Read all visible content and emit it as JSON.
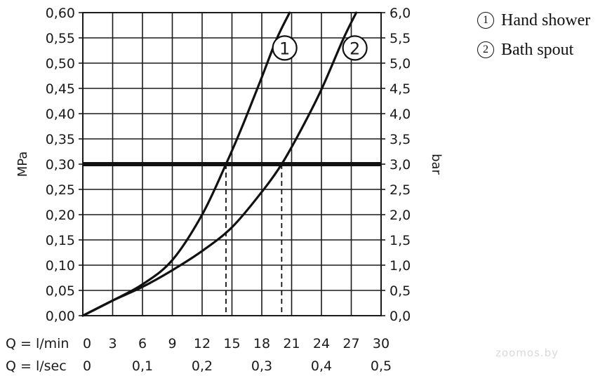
{
  "chart_data": {
    "type": "line",
    "xlabel_rows": [
      {
        "label": "Q = l/min",
        "ticks": [
          "0",
          "3",
          "6",
          "9",
          "12",
          "15",
          "18",
          "21",
          "24",
          "27",
          "30"
        ]
      },
      {
        "label": "Q = l/sec",
        "ticks": [
          "0",
          "0,1",
          "0,2",
          "0,3",
          "0,4",
          "0,5"
        ]
      }
    ],
    "x_range": [
      0,
      30
    ],
    "ylabel_left": "MPa",
    "ylabel_right": "bar",
    "y_range": [
      0,
      0.6
    ],
    "y_left_ticks": [
      "0,00",
      "0,05",
      "0,10",
      "0,15",
      "0,20",
      "0,25",
      "0,30",
      "0,35",
      "0,40",
      "0,45",
      "0,50",
      "0,55",
      "0,60"
    ],
    "y_right_ticks": [
      "0,0",
      "0,5",
      "1,0",
      "1,5",
      "2,0",
      "2,5",
      "3,0",
      "3,5",
      "4,0",
      "4,5",
      "5,0",
      "5,5",
      "6,0"
    ],
    "grid": true,
    "series": [
      {
        "name": "Hand shower",
        "marker": "1",
        "x": [
          0,
          3,
          6,
          9,
          12,
          14.4,
          16,
          18,
          19.5,
          20.8
        ],
        "y": [
          0,
          0.03,
          0.062,
          0.11,
          0.2,
          0.3,
          0.373,
          0.472,
          0.548,
          0.6
        ]
      },
      {
        "name": "Bath spout",
        "marker": "2",
        "x": [
          0,
          3,
          6,
          9,
          12,
          15,
          18,
          20,
          22,
          24,
          26.2,
          27.5
        ],
        "y": [
          0,
          0.03,
          0.057,
          0.09,
          0.128,
          0.175,
          0.245,
          0.3,
          0.37,
          0.448,
          0.548,
          0.6
        ]
      }
    ],
    "reference_line": {
      "y": 0.3
    },
    "drop_lines": [
      {
        "x": 14.4,
        "y": 0.3
      },
      {
        "x": 20,
        "y": 0.3
      }
    ]
  },
  "legend": [
    {
      "num": "1",
      "label": "Hand shower"
    },
    {
      "num": "2",
      "label": "Bath spout"
    }
  ],
  "watermark": "zoomos.by"
}
